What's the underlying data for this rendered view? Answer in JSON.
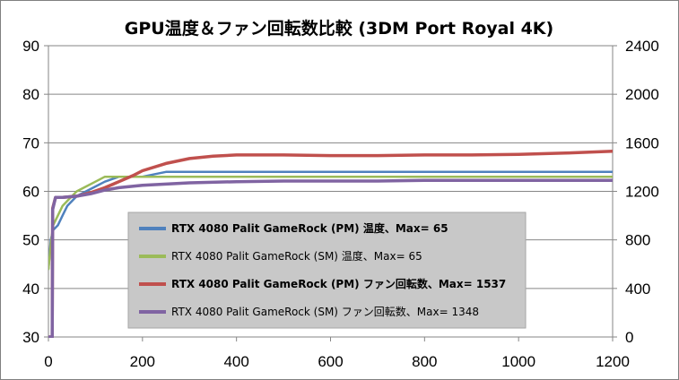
{
  "chart_data": {
    "type": "line",
    "title": "GPU温度＆ファン回転数比較 (3DM Port Royal 4K)",
    "xlabel": "",
    "ylabel": "",
    "y2label": "",
    "xlim": [
      0,
      1200
    ],
    "ylim": [
      30,
      90
    ],
    "y2lim": [
      0,
      2400
    ],
    "x_ticks": [
      "0",
      "200",
      "400",
      "600",
      "800",
      "1000",
      "1200"
    ],
    "y_ticks": [
      "30",
      "40",
      "50",
      "60",
      "70",
      "80",
      "90"
    ],
    "y2_ticks": [
      "0",
      "400",
      "800",
      "1200",
      "1600",
      "2000",
      "2400"
    ],
    "grid": "horizontal",
    "legend_placement": "center-left",
    "series": [
      {
        "name": "RTX 4080 Palit GameRock (PM) 温度、Max= 65",
        "axis": "left",
        "color": "#4f81bd",
        "bold": true,
        "points": [
          [
            0,
            44
          ],
          [
            5,
            50
          ],
          [
            10,
            52
          ],
          [
            20,
            53
          ],
          [
            30,
            55
          ],
          [
            40,
            57
          ],
          [
            60,
            59
          ],
          [
            80,
            60
          ],
          [
            100,
            61
          ],
          [
            120,
            62
          ],
          [
            150,
            63
          ],
          [
            200,
            63
          ],
          [
            250,
            64
          ],
          [
            300,
            64
          ],
          [
            400,
            64
          ],
          [
            500,
            64
          ],
          [
            600,
            64
          ],
          [
            700,
            64
          ],
          [
            800,
            64
          ],
          [
            900,
            64
          ],
          [
            1000,
            64
          ],
          [
            1100,
            64
          ],
          [
            1200,
            64
          ]
        ]
      },
      {
        "name": "RTX 4080 Palit GameRock (SM) 温度、Max= 65",
        "axis": "left",
        "color": "#9bbb59",
        "bold": false,
        "points": [
          [
            0,
            44
          ],
          [
            5,
            49
          ],
          [
            10,
            53
          ],
          [
            20,
            55
          ],
          [
            30,
            57
          ],
          [
            40,
            58
          ],
          [
            60,
            60
          ],
          [
            80,
            61
          ],
          [
            100,
            62
          ],
          [
            120,
            63
          ],
          [
            150,
            63
          ],
          [
            200,
            63
          ],
          [
            250,
            63
          ],
          [
            300,
            63
          ],
          [
            400,
            63
          ],
          [
            500,
            63
          ],
          [
            600,
            63
          ],
          [
            700,
            63
          ],
          [
            800,
            63
          ],
          [
            900,
            63
          ],
          [
            1000,
            63
          ],
          [
            1100,
            63
          ],
          [
            1200,
            63
          ]
        ]
      },
      {
        "name": "RTX 4080 Palit GameRock (PM) ファン回転数、Max= 1537",
        "axis": "right",
        "color": "#c0504d",
        "bold": true,
        "points": [
          [
            0,
            0
          ],
          [
            8,
            0
          ],
          [
            9,
            1060
          ],
          [
            15,
            1150
          ],
          [
            30,
            1150
          ],
          [
            60,
            1160
          ],
          [
            90,
            1190
          ],
          [
            120,
            1230
          ],
          [
            150,
            1280
          ],
          [
            180,
            1330
          ],
          [
            200,
            1370
          ],
          [
            250,
            1430
          ],
          [
            300,
            1470
          ],
          [
            350,
            1490
          ],
          [
            400,
            1500
          ],
          [
            500,
            1500
          ],
          [
            600,
            1495
          ],
          [
            700,
            1495
          ],
          [
            800,
            1500
          ],
          [
            900,
            1500
          ],
          [
            1000,
            1505
          ],
          [
            1100,
            1515
          ],
          [
            1200,
            1530
          ]
        ]
      },
      {
        "name": "RTX 4080 Palit GameRock (SM) ファン回転数、Max= 1348",
        "axis": "right",
        "color": "#8064a2",
        "bold": false,
        "points": [
          [
            0,
            0
          ],
          [
            8,
            0
          ],
          [
            9,
            1050
          ],
          [
            15,
            1150
          ],
          [
            30,
            1150
          ],
          [
            60,
            1160
          ],
          [
            90,
            1180
          ],
          [
            120,
            1210
          ],
          [
            150,
            1230
          ],
          [
            200,
            1250
          ],
          [
            250,
            1260
          ],
          [
            300,
            1270
          ],
          [
            400,
            1280
          ],
          [
            500,
            1285
          ],
          [
            600,
            1285
          ],
          [
            700,
            1285
          ],
          [
            800,
            1290
          ],
          [
            900,
            1290
          ],
          [
            1000,
            1290
          ],
          [
            1100,
            1290
          ],
          [
            1200,
            1290
          ]
        ]
      }
    ]
  }
}
